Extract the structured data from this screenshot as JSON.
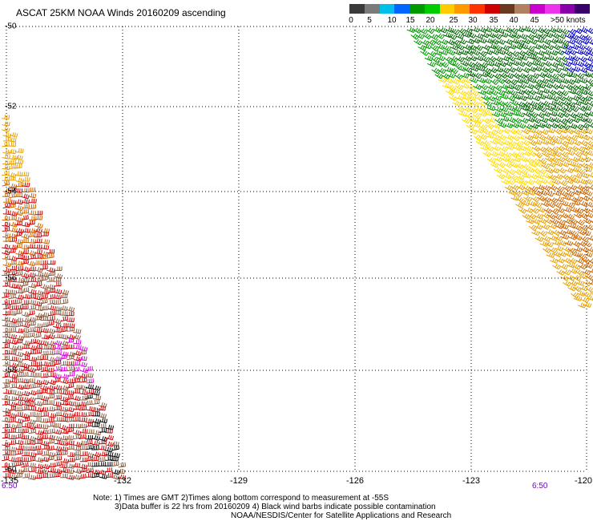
{
  "title": "ASCAT 25KM NOAA Winds 20160209 ascending",
  "colorbar": {
    "colors": [
      "#3a3a3a",
      "#7a7a7a",
      "#00bfe8",
      "#0066ff",
      "#009900",
      "#00cc00",
      "#ffcc00",
      "#ff9900",
      "#ff3300",
      "#cc0000",
      "#6b3a1e",
      "#b08060",
      "#cc00cc",
      "#ee33ee",
      "#8800aa",
      "#3a006b"
    ],
    "labels": [
      "0",
      "5",
      "10",
      "15",
      "20",
      "25",
      "30",
      "35",
      "40",
      "45"
    ],
    "top_label": ">50",
    "unit": "knots"
  },
  "map": {
    "lat_labels": [
      "-50",
      "-52",
      "-54",
      "-56",
      "-58",
      "-60"
    ],
    "lon_labels": [
      "-132",
      "-129",
      "-126",
      "-123",
      "-120"
    ],
    "corner_label": "-135",
    "time_left": "6:50",
    "time_right": "6:50",
    "barb_colors": {
      "green": "#009900",
      "dark_green": "#006600",
      "yellow": "#ffdd00",
      "orange": "#e6a000",
      "dark_orange": "#cc6600",
      "red": "#cc0000",
      "brown": "#8b5a3c",
      "magenta": "#dd00dd",
      "blue": "#0000cc",
      "black": "#000000"
    }
  },
  "notes": {
    "line1": "Note: 1) Times are GMT 2)Times along bottom correspond to measurement at -55S",
    "line2": "3)Data buffer is 22 hrs from 20160209 4) Black wind barbs indicate possible contamination",
    "line3": "NOAA/NESDIS/Center for Satellite Applications and Research"
  }
}
